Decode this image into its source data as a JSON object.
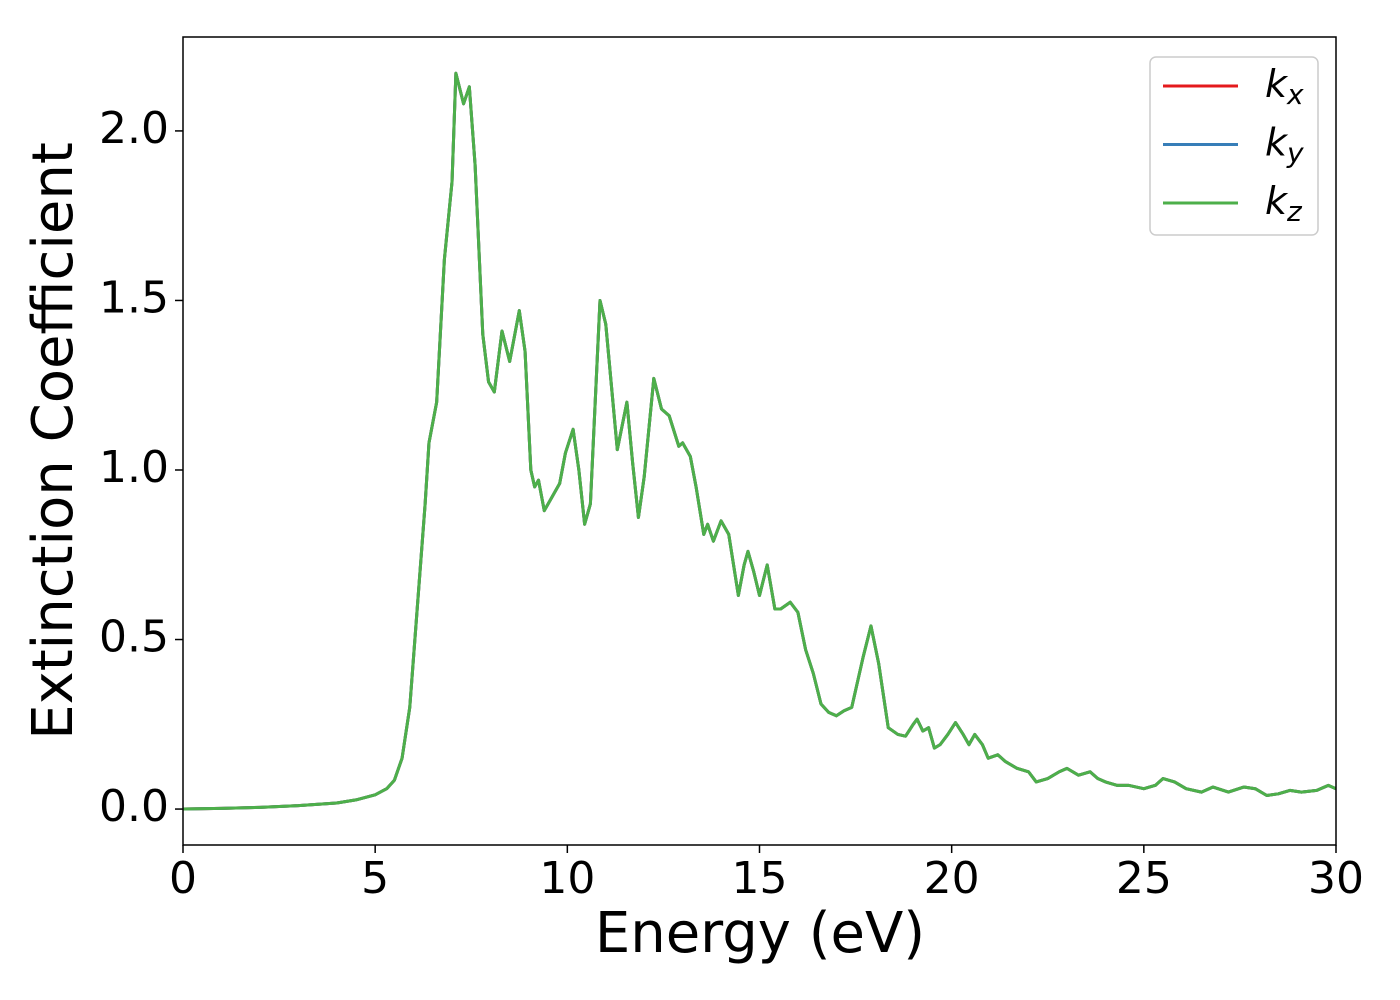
{
  "chart_data": {
    "type": "line",
    "xlabel": "Energy (eV)",
    "ylabel": "Extinction Coefficient",
    "x": [
      0,
      1,
      2,
      3,
      4,
      4.5,
      5,
      5.3,
      5.5,
      5.7,
      5.9,
      6.1,
      6.3,
      6.4,
      6.6,
      6.8,
      7.0,
      7.1,
      7.3,
      7.45,
      7.6,
      7.8,
      7.95,
      8.1,
      8.3,
      8.5,
      8.75,
      8.9,
      9.05,
      9.15,
      9.25,
      9.4,
      9.6,
      9.8,
      9.95,
      10.15,
      10.3,
      10.45,
      10.6,
      10.85,
      11.0,
      11.3,
      11.55,
      11.7,
      11.85,
      12.0,
      12.25,
      12.45,
      12.65,
      12.9,
      13.0,
      13.2,
      13.35,
      13.55,
      13.65,
      13.8,
      14.0,
      14.2,
      14.45,
      14.6,
      14.7,
      14.85,
      15.0,
      15.2,
      15.4,
      15.55,
      15.8,
      16.0,
      16.2,
      16.4,
      16.6,
      16.8,
      17.0,
      17.2,
      17.4,
      17.7,
      17.9,
      18.1,
      18.35,
      18.6,
      18.8,
      19.0,
      19.1,
      19.25,
      19.4,
      19.55,
      19.7,
      19.9,
      20.1,
      20.3,
      20.45,
      20.6,
      20.8,
      20.95,
      21.2,
      21.4,
      21.7,
      22.0,
      22.2,
      22.5,
      22.8,
      23.0,
      23.3,
      23.6,
      23.8,
      24.0,
      24.3,
      24.6,
      25.0,
      25.3,
      25.5,
      25.8,
      26.1,
      26.5,
      26.8,
      27.2,
      27.6,
      27.9,
      28.2,
      28.5,
      28.8,
      29.1,
      29.5,
      29.8,
      30.0
    ],
    "series": [
      {
        "name": "kx",
        "color": "#e41a1c",
        "values": [
          0.0,
          0.002,
          0.005,
          0.01,
          0.018,
          0.027,
          0.042,
          0.06,
          0.085,
          0.15,
          0.3,
          0.6,
          0.9,
          1.08,
          1.2,
          1.62,
          1.85,
          2.17,
          2.08,
          2.13,
          1.9,
          1.4,
          1.26,
          1.23,
          1.41,
          1.32,
          1.47,
          1.35,
          1.0,
          0.95,
          0.97,
          0.88,
          0.92,
          0.96,
          1.05,
          1.12,
          1.0,
          0.84,
          0.9,
          1.5,
          1.43,
          1.06,
          1.2,
          1.02,
          0.86,
          0.98,
          1.27,
          1.18,
          1.16,
          1.07,
          1.08,
          1.04,
          0.95,
          0.81,
          0.84,
          0.79,
          0.85,
          0.81,
          0.63,
          0.72,
          0.76,
          0.7,
          0.63,
          0.72,
          0.59,
          0.59,
          0.61,
          0.58,
          0.47,
          0.4,
          0.31,
          0.285,
          0.275,
          0.29,
          0.3,
          0.45,
          0.54,
          0.43,
          0.24,
          0.22,
          0.215,
          0.25,
          0.265,
          0.23,
          0.24,
          0.18,
          0.19,
          0.22,
          0.255,
          0.22,
          0.19,
          0.22,
          0.19,
          0.15,
          0.16,
          0.14,
          0.12,
          0.11,
          0.08,
          0.09,
          0.11,
          0.12,
          0.1,
          0.11,
          0.09,
          0.08,
          0.07,
          0.07,
          0.06,
          0.07,
          0.09,
          0.08,
          0.06,
          0.05,
          0.065,
          0.05,
          0.065,
          0.06,
          0.04,
          0.045,
          0.055,
          0.05,
          0.055,
          0.07,
          0.06
        ]
      },
      {
        "name": "ky",
        "color": "#377eb8",
        "values": [
          0.0,
          0.002,
          0.005,
          0.01,
          0.018,
          0.027,
          0.042,
          0.06,
          0.085,
          0.15,
          0.3,
          0.6,
          0.9,
          1.08,
          1.2,
          1.62,
          1.85,
          2.17,
          2.08,
          2.13,
          1.9,
          1.4,
          1.26,
          1.23,
          1.41,
          1.32,
          1.47,
          1.35,
          1.0,
          0.95,
          0.97,
          0.88,
          0.92,
          0.96,
          1.05,
          1.12,
          1.0,
          0.84,
          0.9,
          1.5,
          1.43,
          1.06,
          1.2,
          1.02,
          0.86,
          0.98,
          1.27,
          1.18,
          1.16,
          1.07,
          1.08,
          1.04,
          0.95,
          0.81,
          0.84,
          0.79,
          0.85,
          0.81,
          0.63,
          0.72,
          0.76,
          0.7,
          0.63,
          0.72,
          0.59,
          0.59,
          0.61,
          0.58,
          0.47,
          0.4,
          0.31,
          0.285,
          0.275,
          0.29,
          0.3,
          0.45,
          0.54,
          0.43,
          0.24,
          0.22,
          0.215,
          0.25,
          0.265,
          0.23,
          0.24,
          0.18,
          0.19,
          0.22,
          0.255,
          0.22,
          0.19,
          0.22,
          0.19,
          0.15,
          0.16,
          0.14,
          0.12,
          0.11,
          0.08,
          0.09,
          0.11,
          0.12,
          0.1,
          0.11,
          0.09,
          0.08,
          0.07,
          0.07,
          0.06,
          0.07,
          0.09,
          0.08,
          0.06,
          0.05,
          0.065,
          0.05,
          0.065,
          0.06,
          0.04,
          0.045,
          0.055,
          0.05,
          0.055,
          0.07,
          0.06
        ]
      },
      {
        "name": "kz",
        "color": "#4daf4a",
        "values": [
          0.0,
          0.002,
          0.005,
          0.01,
          0.018,
          0.027,
          0.042,
          0.06,
          0.085,
          0.15,
          0.3,
          0.6,
          0.9,
          1.08,
          1.2,
          1.62,
          1.85,
          2.17,
          2.08,
          2.13,
          1.9,
          1.4,
          1.26,
          1.23,
          1.41,
          1.32,
          1.47,
          1.35,
          1.0,
          0.95,
          0.97,
          0.88,
          0.92,
          0.96,
          1.05,
          1.12,
          1.0,
          0.84,
          0.9,
          1.5,
          1.43,
          1.06,
          1.2,
          1.02,
          0.86,
          0.98,
          1.27,
          1.18,
          1.16,
          1.07,
          1.08,
          1.04,
          0.95,
          0.81,
          0.84,
          0.79,
          0.85,
          0.81,
          0.63,
          0.72,
          0.76,
          0.7,
          0.63,
          0.72,
          0.59,
          0.59,
          0.61,
          0.58,
          0.47,
          0.4,
          0.31,
          0.285,
          0.275,
          0.29,
          0.3,
          0.45,
          0.54,
          0.43,
          0.24,
          0.22,
          0.215,
          0.25,
          0.265,
          0.23,
          0.24,
          0.18,
          0.19,
          0.22,
          0.255,
          0.22,
          0.19,
          0.22,
          0.19,
          0.15,
          0.16,
          0.14,
          0.12,
          0.11,
          0.08,
          0.09,
          0.11,
          0.12,
          0.1,
          0.11,
          0.09,
          0.08,
          0.07,
          0.07,
          0.06,
          0.07,
          0.09,
          0.08,
          0.06,
          0.05,
          0.065,
          0.05,
          0.065,
          0.06,
          0.04,
          0.045,
          0.055,
          0.05,
          0.055,
          0.07,
          0.06
        ]
      }
    ],
    "xlim": [
      0,
      30
    ],
    "xticks": [
      0,
      5,
      10,
      15,
      20,
      25,
      30
    ],
    "ylim": [
      -0.106,
      2.277
    ],
    "yticks": [
      {
        "value": 0,
        "label": "0.0"
      },
      {
        "value": 0.5,
        "label": "0.5"
      },
      {
        "value": 1,
        "label": "1.0"
      },
      {
        "value": 1.5,
        "label": "1.5"
      },
      {
        "value": 2,
        "label": "2.0"
      }
    ],
    "grid": false,
    "legend": "upper right"
  }
}
